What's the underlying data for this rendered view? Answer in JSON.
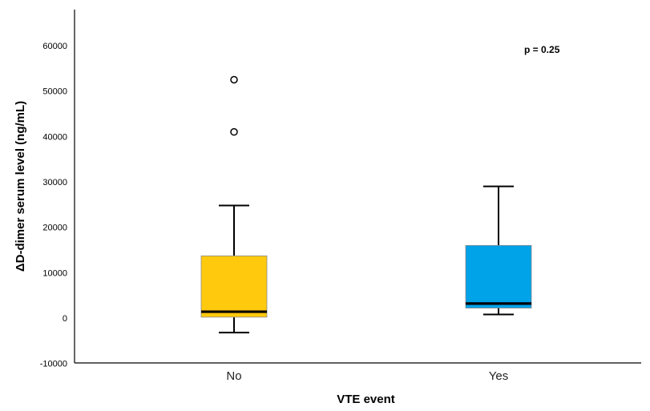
{
  "chart_data": {
    "type": "box",
    "title": "",
    "xlabel": "VTE event",
    "ylabel": "ΔD-dimer serum level (ng/mL)",
    "ylim": [
      -10000,
      67000
    ],
    "yticks": [
      -10000,
      0,
      10000,
      20000,
      30000,
      40000,
      50000,
      60000
    ],
    "categories": [
      "No",
      "Yes"
    ],
    "boxes": [
      {
        "category": "No",
        "color": "#FFC90E",
        "whisker_low": -3200,
        "q1": 200,
        "median": 1400,
        "q3": 13700,
        "whisker_high": 24800,
        "outliers": [
          52500,
          41000
        ]
      },
      {
        "category": "Yes",
        "color": "#00A2E8",
        "whisker_low": 800,
        "q1": 2200,
        "median": 3200,
        "q3": 16000,
        "whisker_high": 29000,
        "outliers": []
      }
    ],
    "annotation": "p = 0.25",
    "grid": false,
    "legend": "none"
  }
}
